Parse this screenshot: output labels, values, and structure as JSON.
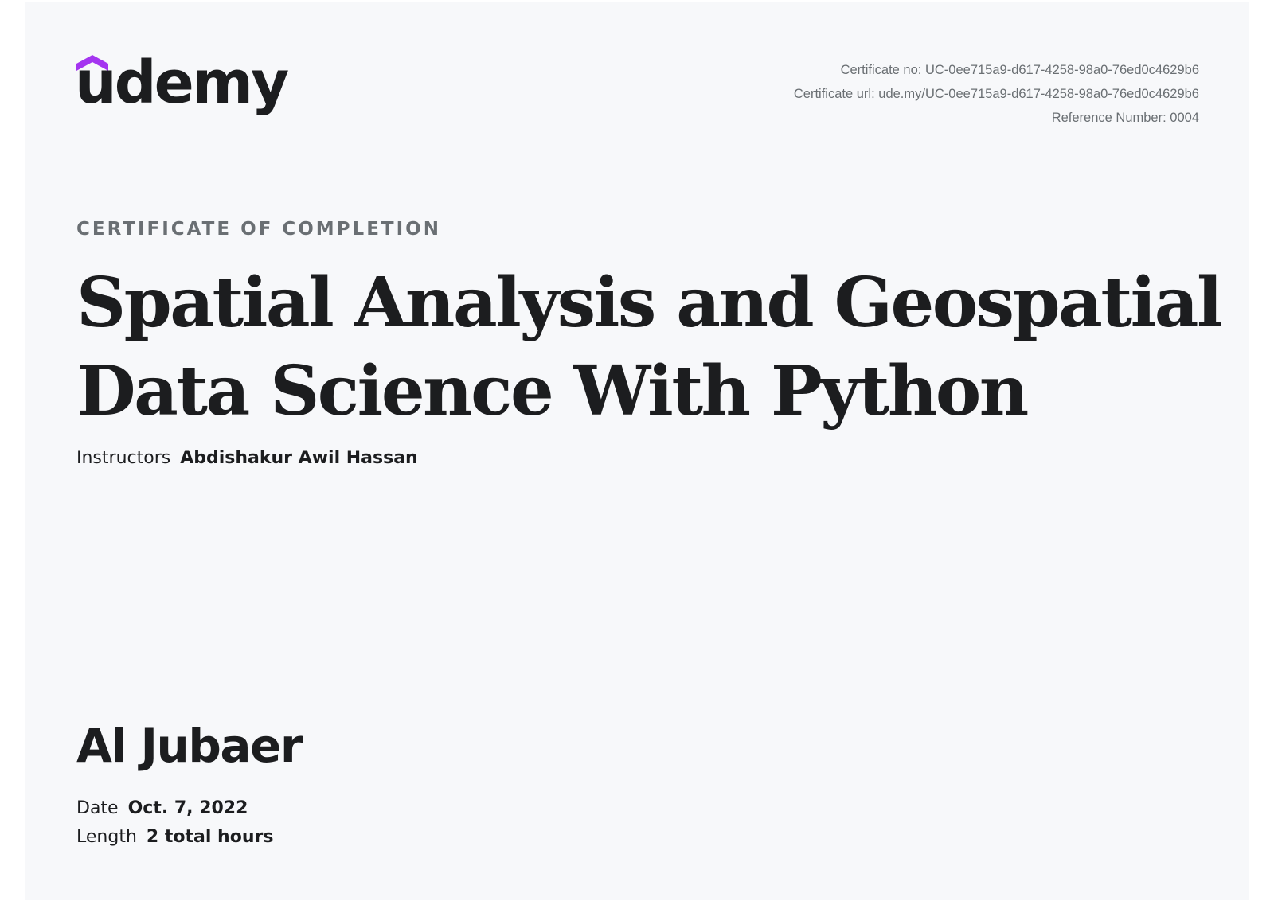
{
  "logo": {
    "wordmark": "udemy",
    "icon": "udemy-hat-icon",
    "accent_color": "#a435f0"
  },
  "certificate": {
    "number_label": "Certificate no:",
    "number_value": "UC-0ee715a9-d617-4258-98a0-76ed0c4629b6",
    "url_label": "Certificate url:",
    "url_value": "ude.my/UC-0ee715a9-d617-4258-98a0-76ed0c4629b6",
    "reference_label": "Reference Number:",
    "reference_value": "0004"
  },
  "heading": "CERTIFICATE OF COMPLETION",
  "course": {
    "title": "Spatial Analysis and Geospatial Data Science With Python"
  },
  "instructors": {
    "label": "Instructors",
    "value": "Abdishakur Awil Hassan"
  },
  "recipient": {
    "name": "Al Jubaer"
  },
  "details": {
    "date_label": "Date",
    "date_value": "Oct. 7, 2022",
    "length_label": "Length",
    "length_value": "2 total hours"
  },
  "colors": {
    "background": "#f7f8fa",
    "text": "#1c1d1f",
    "muted": "#6a6f73"
  }
}
